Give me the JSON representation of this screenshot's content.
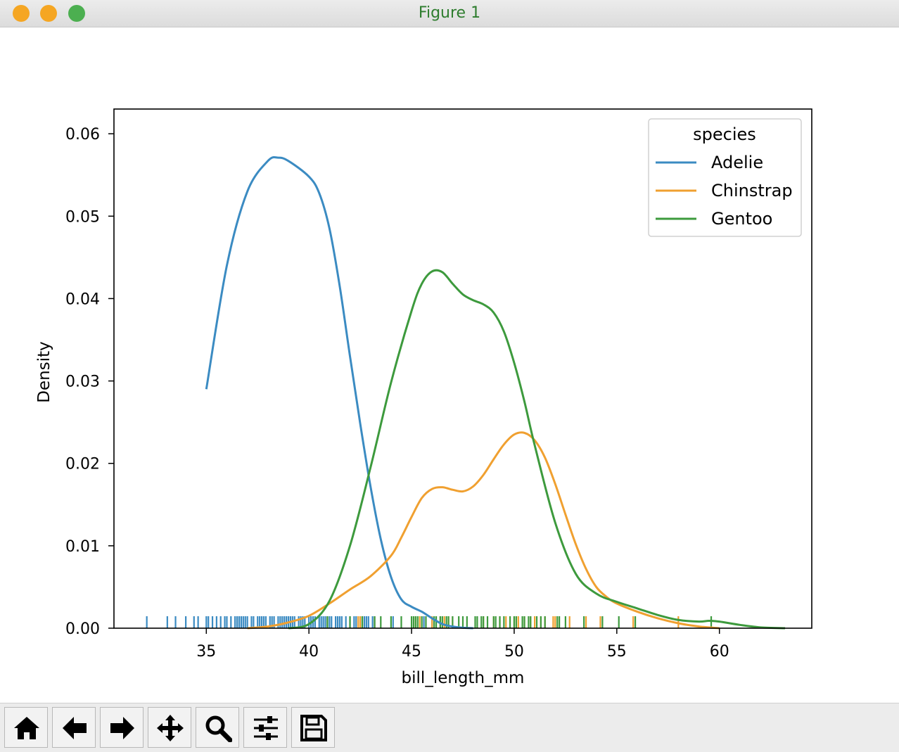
{
  "window": {
    "title": "Figure 1",
    "traffic_colors": [
      "#f5a623",
      "#f5a623",
      "#4caf50"
    ]
  },
  "toolbar": {
    "buttons": [
      {
        "name": "home-button",
        "icon": "home-icon"
      },
      {
        "name": "back-button",
        "icon": "arrow-left-icon"
      },
      {
        "name": "forward-button",
        "icon": "arrow-right-icon"
      },
      {
        "name": "pan-button",
        "icon": "move-icon"
      },
      {
        "name": "zoom-button",
        "icon": "search-icon"
      },
      {
        "name": "configure-subplots-button",
        "icon": "sliders-icon"
      },
      {
        "name": "save-button",
        "icon": "save-icon"
      }
    ]
  },
  "chart_data": {
    "type": "line",
    "title": "",
    "xlabel": "bill_length_mm",
    "ylabel": "Density",
    "xlim": [
      30.5,
      64.5
    ],
    "ylim": [
      0,
      0.063
    ],
    "xticks": [
      35,
      40,
      45,
      50,
      55,
      60
    ],
    "xtick_labels": [
      "35",
      "40",
      "45",
      "50",
      "55",
      "60"
    ],
    "yticks": [
      0,
      0.01,
      0.02,
      0.03,
      0.04,
      0.05,
      0.06
    ],
    "ytick_labels": [
      "0.00",
      "0.01",
      "0.02",
      "0.03",
      "0.04",
      "0.05",
      "0.06"
    ],
    "grid": false,
    "legend": {
      "title": "species",
      "placement": "upper right"
    },
    "series": [
      {
        "name": "Adelie",
        "color": "#3b8bc2",
        "x": [
          35,
          36,
          37,
          38,
          38.5,
          39,
          40,
          40.5,
          41,
          41.5,
          42,
          42.5,
          43,
          43.5,
          44,
          44.5,
          45,
          45.5,
          46,
          46.5,
          47,
          47.5,
          48
        ],
        "y": [
          0.029,
          0.044,
          0.053,
          0.0567,
          0.0571,
          0.0567,
          0.0548,
          0.0528,
          0.0485,
          0.0415,
          0.033,
          0.0248,
          0.0172,
          0.0108,
          0.0062,
          0.0035,
          0.0026,
          0.002,
          0.0012,
          0.0005,
          0.0002,
          5e-05,
          0.0
        ]
      },
      {
        "name": "Chinstrap",
        "color": "#f0a030",
        "x": [
          37,
          38,
          39,
          40,
          41,
          42,
          43,
          44,
          44.5,
          45,
          45.5,
          46,
          46.5,
          47,
          47.5,
          48,
          48.5,
          49,
          49.5,
          50,
          50.5,
          51,
          51.5,
          52,
          52.5,
          53,
          53.5,
          54,
          54.5,
          55,
          56,
          57,
          58,
          59,
          60
        ],
        "y": [
          0.0,
          0.0002,
          0.0007,
          0.0015,
          0.003,
          0.0047,
          0.0063,
          0.0088,
          0.011,
          0.0135,
          0.0158,
          0.0169,
          0.0171,
          0.0168,
          0.0166,
          0.0172,
          0.0186,
          0.0205,
          0.0223,
          0.0235,
          0.0237,
          0.0228,
          0.0207,
          0.0175,
          0.0138,
          0.0102,
          0.0072,
          0.005,
          0.0038,
          0.003,
          0.002,
          0.0012,
          0.0006,
          0.0002,
          0.0
        ]
      },
      {
        "name": "Gentoo",
        "color": "#3d9a3d",
        "x": [
          39,
          40,
          41,
          42,
          43,
          44,
          45,
          45.5,
          46,
          46.5,
          47,
          47.5,
          48,
          48.5,
          49,
          49.5,
          50,
          50.5,
          51,
          52,
          53,
          54,
          55,
          56,
          57,
          58,
          59,
          59.5,
          60,
          61,
          62,
          63.2
        ],
        "y": [
          0.0,
          0.0005,
          0.0033,
          0.01,
          0.0195,
          0.0298,
          0.0385,
          0.0418,
          0.0433,
          0.0432,
          0.0418,
          0.0405,
          0.0398,
          0.0393,
          0.0383,
          0.036,
          0.0322,
          0.0275,
          0.0222,
          0.0128,
          0.0066,
          0.0042,
          0.0032,
          0.0024,
          0.0016,
          0.001,
          0.0008,
          0.0009,
          0.0008,
          0.0004,
          0.0001,
          0.0
        ]
      }
    ],
    "rug": {
      "Adelie": [
        32.1,
        33.1,
        33.5,
        34.0,
        34.4,
        34.6,
        35.0,
        35.1,
        35.3,
        35.5,
        35.7,
        35.9,
        36.0,
        36.2,
        36.4,
        36.5,
        36.6,
        36.7,
        36.8,
        36.9,
        37.0,
        37.2,
        37.3,
        37.5,
        37.6,
        37.7,
        37.8,
        37.9,
        38.1,
        38.2,
        38.3,
        38.5,
        38.6,
        38.7,
        38.8,
        38.9,
        39.0,
        39.1,
        39.2,
        39.3,
        39.5,
        39.6,
        39.7,
        39.8,
        40.0,
        40.1,
        40.2,
        40.3,
        40.5,
        40.6,
        40.7,
        40.8,
        40.9,
        41.0,
        41.1,
        41.3,
        41.4,
        41.5,
        41.6,
        41.8,
        42.0,
        42.2,
        42.3,
        42.5,
        42.7,
        42.8,
        42.9,
        43.1,
        43.2,
        44.1,
        45.6,
        46.0
      ],
      "Chinstrap": [
        40.9,
        42.4,
        42.5,
        43.2,
        45.2,
        45.4,
        46.0,
        46.4,
        46.6,
        46.8,
        47.0,
        48.5,
        49.0,
        49.3,
        49.6,
        50.0,
        50.2,
        50.5,
        50.8,
        51.0,
        51.3,
        51.5,
        51.9,
        52.0,
        52.7,
        53.5,
        54.2,
        55.8,
        58.0
      ],
      "Gentoo": [
        40.9,
        42.0,
        42.6,
        43.2,
        43.5,
        44.0,
        44.5,
        45.0,
        45.1,
        45.2,
        45.3,
        45.5,
        45.7,
        46.1,
        46.2,
        46.4,
        46.5,
        46.7,
        46.8,
        47.0,
        47.3,
        47.5,
        47.7,
        48.1,
        48.2,
        48.4,
        48.5,
        48.7,
        49.0,
        49.1,
        49.3,
        49.5,
        49.8,
        50.0,
        50.1,
        50.4,
        50.5,
        50.7,
        50.8,
        51.1,
        51.3,
        51.5,
        52.1,
        52.2,
        52.5,
        53.4,
        54.3,
        55.1,
        55.9,
        59.6
      ]
    }
  }
}
